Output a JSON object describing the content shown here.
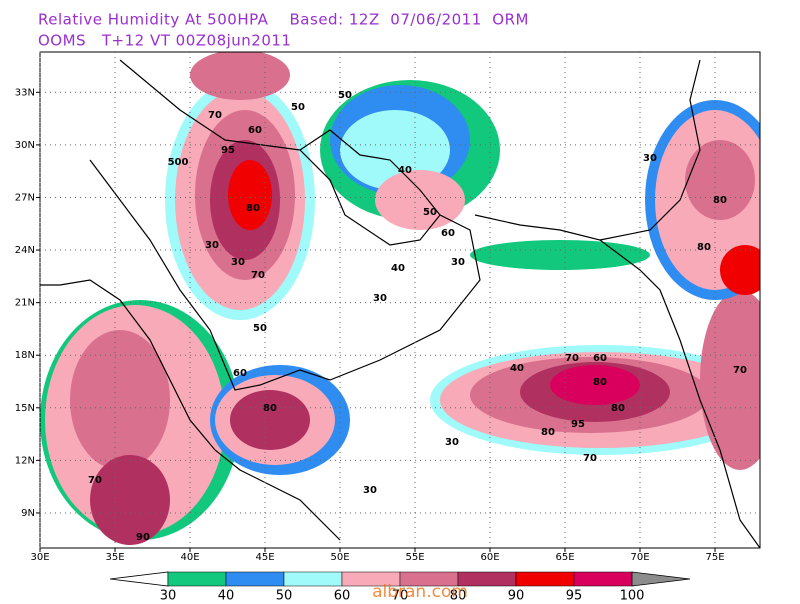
{
  "header": {
    "line1": "Relative Humidity At 500HPA    Based: 12Z  07/06/2011  ORM",
    "line2": "OOMS   T+12 VT 00Z08jun2011"
  },
  "map": {
    "lonlim": [
      30,
      78
    ],
    "latlim": [
      7,
      35.3
    ],
    "lon_ticks": [
      {
        "value": 30,
        "label": "30E"
      },
      {
        "value": 35,
        "label": "35E"
      },
      {
        "value": 40,
        "label": "40E"
      },
      {
        "value": 45,
        "label": "45E"
      },
      {
        "value": 50,
        "label": "50E"
      },
      {
        "value": 55,
        "label": "55E"
      },
      {
        "value": 60,
        "label": "60E"
      },
      {
        "value": 65,
        "label": "65E"
      },
      {
        "value": 70,
        "label": "70E"
      },
      {
        "value": 75,
        "label": "75E"
      }
    ],
    "lat_ticks": [
      {
        "value": 9,
        "label": "9N"
      },
      {
        "value": 12,
        "label": "12N"
      },
      {
        "value": 15,
        "label": "15N"
      },
      {
        "value": 18,
        "label": "18N"
      },
      {
        "value": 21,
        "label": "21N"
      },
      {
        "value": 24,
        "label": "24N"
      },
      {
        "value": 27,
        "label": "27N"
      },
      {
        "value": 30,
        "label": "30N"
      },
      {
        "value": 33,
        "label": "33N"
      }
    ],
    "grid": true,
    "contour_labels": [
      "70",
      "60",
      "95",
      "80",
      "70",
      "500",
      "30",
      "30",
      "50",
      "50",
      "40",
      "30",
      "40",
      "50",
      "30",
      "60",
      "70",
      "80",
      "80",
      "60",
      "70",
      "95",
      "80",
      "30",
      "40",
      "70",
      "30",
      "80",
      "80",
      "80",
      "50",
      "60",
      "70",
      "90",
      "30"
    ]
  },
  "colorbar": {
    "levels": [
      30,
      40,
      50,
      60,
      70,
      80,
      90,
      95,
      100
    ],
    "colors": [
      "#ffffff",
      "#12c87d",
      "#2f8cf0",
      "#a0fafa",
      "#f8aab8",
      "#d8708e",
      "#b03060",
      "#f00000",
      "#d8005c",
      "#8c8c8c"
    ]
  },
  "watermark": "albran.com"
}
